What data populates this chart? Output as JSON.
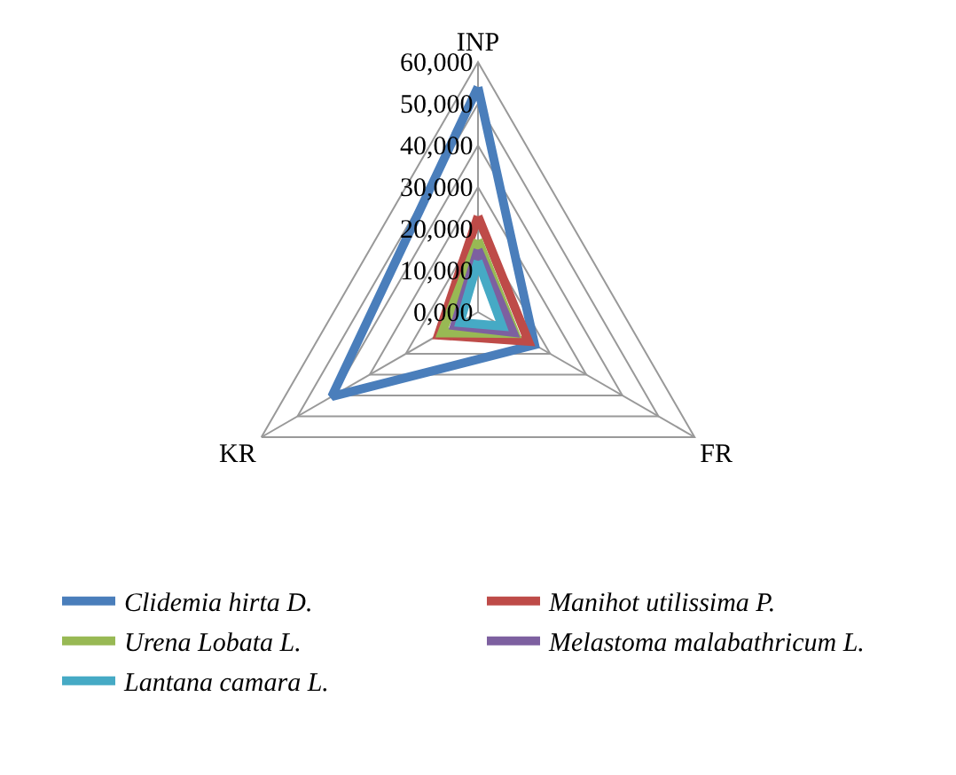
{
  "chart_data": {
    "type": "radar",
    "categories": [
      "INP",
      "FR",
      "KR"
    ],
    "series": [
      {
        "name": "Clidemia hirta D.",
        "color": "#4a7ebb",
        "values": [
          54000,
          15700,
          40500
        ]
      },
      {
        "name": "Manihot utilissima P.",
        "color": "#be4b48",
        "values": [
          23000,
          14000,
          11000
        ]
      },
      {
        "name": "Urena Lobata L.",
        "color": "#98b954",
        "values": [
          17300,
          10300,
          10000
        ]
      },
      {
        "name": "Melastoma malabathricum L.",
        "color": "#7d60a0",
        "values": [
          15000,
          9700,
          6500
        ]
      },
      {
        "name": "Lantana camara L.",
        "color": "#46aac5",
        "values": [
          12300,
          6700,
          5000
        ]
      }
    ],
    "ylim": [
      0,
      60000
    ],
    "yticks": [
      {
        "value": 0,
        "label": "0,000"
      },
      {
        "value": 10000,
        "label": "10,000"
      },
      {
        "value": 20000,
        "label": "20,000"
      },
      {
        "value": 30000,
        "label": "30,000"
      },
      {
        "value": 40000,
        "label": "40,000"
      },
      {
        "value": 50000,
        "label": "50,000"
      },
      {
        "value": 60000,
        "label": "60,000"
      }
    ],
    "grid": true,
    "legend": "bottom",
    "marker": "none",
    "line_style": "solid"
  }
}
